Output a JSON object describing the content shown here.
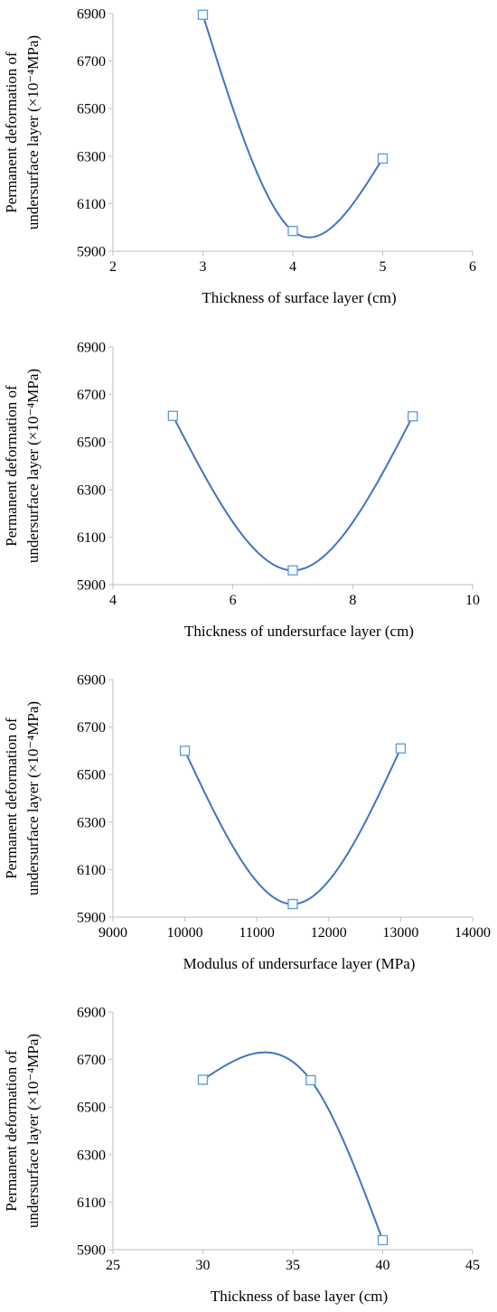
{
  "chart_data": [
    {
      "type": "line",
      "smooth": true,
      "marker": "square",
      "xlabel": "Thickness  of  surface  layer  (cm)",
      "ylabel_lines": [
        "Permanent  deformation  of",
        "undersurface  layer  (×10⁻⁴MPa)"
      ],
      "xlim": [
        2,
        6
      ],
      "ylim": [
        5900,
        6900
      ],
      "xticks": [
        2,
        3,
        4,
        5,
        6
      ],
      "yticks": [
        5900,
        6100,
        6300,
        6500,
        6700,
        6900
      ],
      "x": [
        3,
        4,
        5
      ],
      "y": [
        6895,
        5985,
        6290
      ],
      "line_color": "#4472c4",
      "marker_color": "#5b9bd5"
    },
    {
      "type": "line",
      "smooth": true,
      "marker": "square",
      "xlabel": "Thickness  of  undersurface  layer  (cm)",
      "ylabel_lines": [
        "Permanent  deformation  of",
        "undersurface  layer  (×10⁻⁴MPa)"
      ],
      "xlim": [
        4,
        10
      ],
      "ylim": [
        5900,
        6900
      ],
      "xticks": [
        4,
        6,
        8,
        10
      ],
      "yticks": [
        5900,
        6100,
        6300,
        6500,
        6700,
        6900
      ],
      "x": [
        5,
        7,
        9
      ],
      "y": [
        6610,
        5960,
        6608
      ],
      "line_color": "#4472c4",
      "marker_color": "#5b9bd5"
    },
    {
      "type": "line",
      "smooth": true,
      "marker": "square",
      "xlabel": "Modulus  of  undersurface  layer  (MPa)",
      "ylabel_lines": [
        "Permanent  deformation  of",
        "undersurface  layer  (×10⁻⁴MPa)"
      ],
      "xlim": [
        9000,
        14000
      ],
      "ylim": [
        5900,
        6900
      ],
      "xticks": [
        9000,
        10000,
        11000,
        12000,
        13000,
        14000
      ],
      "yticks": [
        5900,
        6100,
        6300,
        6500,
        6700,
        6900
      ],
      "x": [
        10000,
        11500,
        13000
      ],
      "y": [
        6600,
        5955,
        6610
      ],
      "line_color": "#4472c4",
      "marker_color": "#5b9bd5"
    },
    {
      "type": "line",
      "smooth": true,
      "marker": "square",
      "xlabel": "Thickness  of  base  layer  (cm)",
      "ylabel_lines": [
        "Permanent  deformation  of",
        "undersurface  layer  (×10⁻⁴MPa)"
      ],
      "xlim": [
        25,
        45
      ],
      "ylim": [
        5900,
        6900
      ],
      "xticks": [
        25,
        30,
        35,
        40,
        45
      ],
      "yticks": [
        5900,
        6100,
        6300,
        6500,
        6700,
        6900
      ],
      "x": [
        30,
        36,
        40
      ],
      "y": [
        6615,
        6613,
        5940
      ],
      "line_color": "#4472c4",
      "marker_color": "#5b9bd5"
    }
  ]
}
